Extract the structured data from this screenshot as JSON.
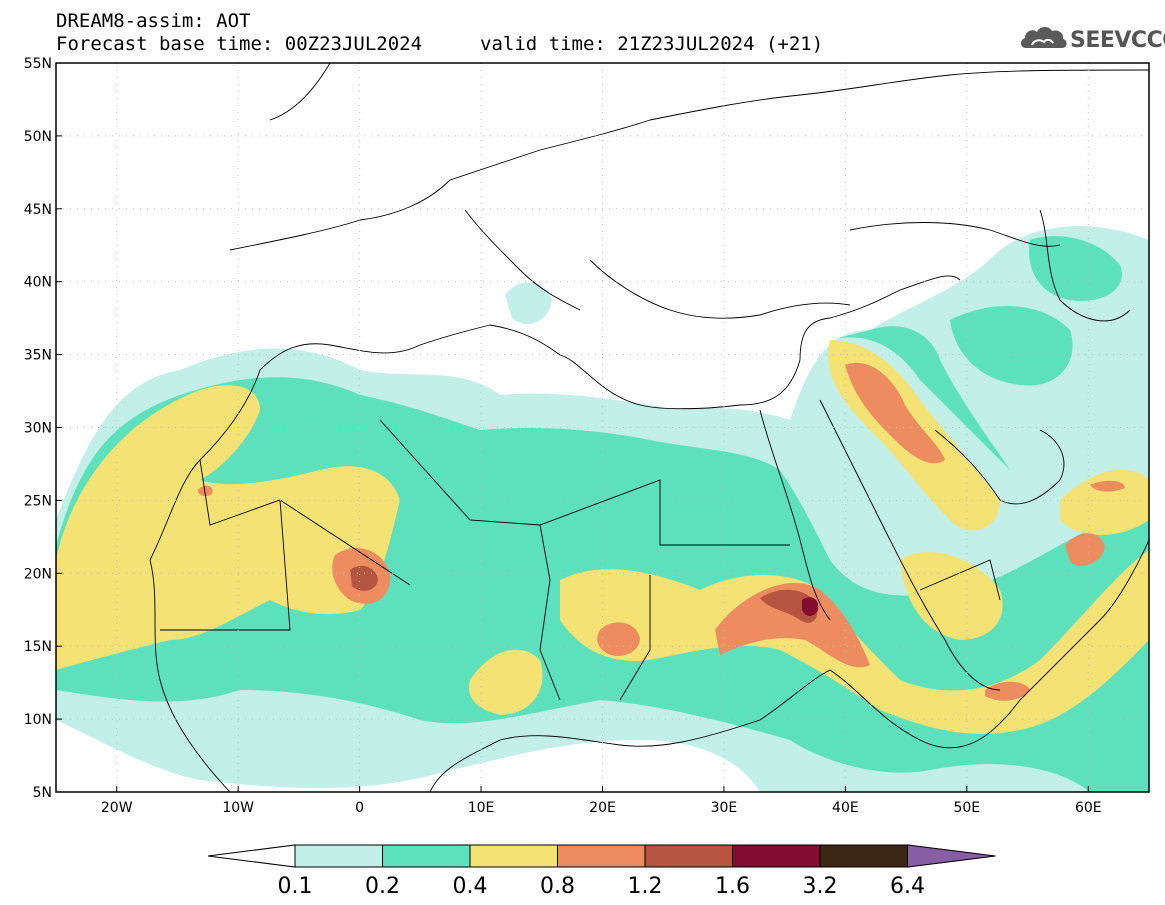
{
  "header": {
    "model_line": "DREAM8-assim: AOT",
    "base_time": "Forecast base time: 00Z23JUL2024",
    "valid_time": "valid time: 21Z23JUL2024 (+21)"
  },
  "logo": {
    "text": "SEEVCCC",
    "icon": "cloud-icon"
  },
  "map": {
    "lon_range": [
      -25,
      65
    ],
    "lat_range": [
      5,
      55
    ],
    "lat_ticks": [
      "5N",
      "10N",
      "15N",
      "20N",
      "25N",
      "30N",
      "35N",
      "40N",
      "45N",
      "50N",
      "55N"
    ],
    "lon_ticks": [
      "20W",
      "10W",
      "0",
      "10E",
      "20E",
      "30E",
      "40E",
      "50E",
      "60E"
    ],
    "grid": "dotted"
  },
  "colorbar": {
    "labels": [
      "0.1",
      "0.2",
      "0.4",
      "0.8",
      "1.2",
      "1.6",
      "3.2",
      "6.4"
    ],
    "colors": [
      "#ffffff",
      "#c2efe7",
      "#5de0bc",
      "#f4e275",
      "#ec8c5f",
      "#b55440",
      "#830c30",
      "#3a2612",
      "#875ea4"
    ]
  }
}
